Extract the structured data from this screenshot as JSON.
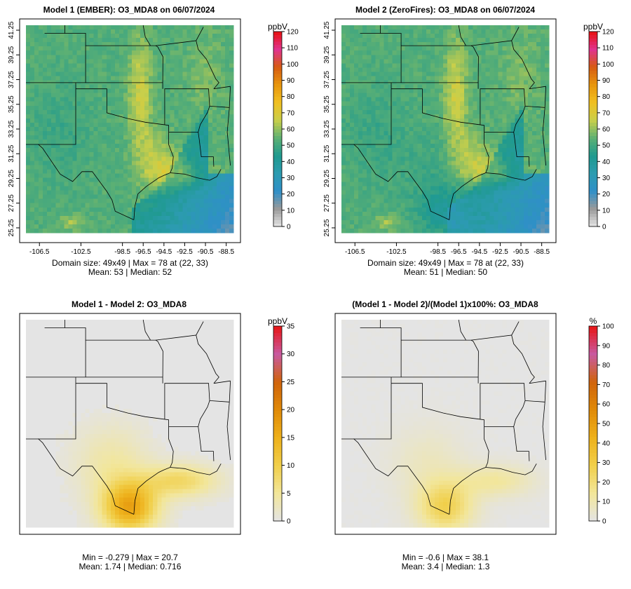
{
  "panels": [
    {
      "title": "Model 1 (EMBER): O3_MDA8 on 06/07/2024",
      "legend_unit": "ppbV",
      "legend_ticks": [
        0,
        10,
        20,
        30,
        40,
        50,
        60,
        70,
        80,
        90,
        100,
        110,
        120
      ],
      "legend_max": 120,
      "legend_type": "conc",
      "field": "model1",
      "show_axes": true,
      "x_ticks": [
        "-106.5",
        "-102.5",
        "-98.5",
        "-96.5",
        "-94.5",
        "-92.5",
        "-90.5",
        "-88.5"
      ],
      "y_ticks": [
        "25.25",
        "27.25",
        "29.25",
        "31.25",
        "33.25",
        "35.25",
        "37.25",
        "39.25",
        "41.25"
      ],
      "stats_line1": "Domain size: 49x49 | Max = 78 at (22, 33)",
      "stats_line2": "Mean: 53 |  Median: 52"
    },
    {
      "title": "Model 2 (ZeroFires): O3_MDA8 on 06/07/2024",
      "legend_unit": "ppbV",
      "legend_ticks": [
        0,
        10,
        20,
        30,
        40,
        50,
        60,
        70,
        80,
        90,
        100,
        110,
        120
      ],
      "legend_max": 120,
      "legend_type": "conc",
      "field": "model2",
      "show_axes": true,
      "x_ticks": [
        "-106.5",
        "-102.5",
        "-98.5",
        "-96.5",
        "-94.5",
        "-92.5",
        "-90.5",
        "-88.5"
      ],
      "y_ticks": [
        "25.25",
        "27.25",
        "29.25",
        "31.25",
        "33.25",
        "35.25",
        "37.25",
        "39.25",
        "41.25"
      ],
      "stats_line1": "Domain size: 49x49 | Max = 78 at (22, 33)",
      "stats_line2": "Mean: 51 |  Median: 50"
    },
    {
      "title": "Model 1 - Model 2: O3_MDA8",
      "legend_unit": "ppbV",
      "legend_ticks": [
        0,
        5,
        10,
        15,
        20,
        25,
        30,
        35
      ],
      "legend_max": 35,
      "legend_type": "diff",
      "field": "diff",
      "show_axes": false,
      "stats_line1": "Min = -0.279 | Max = 20.7",
      "stats_line2": "Mean: 1.74 |  Median: 0.716"
    },
    {
      "title": "(Model 1 - Model 2)/(Model 1)x100%: O3_MDA8",
      "legend_unit": "%",
      "legend_ticks": [
        0,
        10,
        20,
        30,
        40,
        50,
        60,
        70,
        80,
        90,
        100
      ],
      "legend_max": 100,
      "legend_type": "diff",
      "field": "pct",
      "show_axes": false,
      "stats_line1": "Min = -0.6 | Max = 38.1",
      "stats_line2": "Mean: 3.4 |  Median: 1.3"
    }
  ],
  "chart_data": [
    {
      "type": "heatmap",
      "title": "Model 1 (EMBER): O3_MDA8 on 06/07/2024",
      "colorbar_label": "ppbV",
      "colorbar_range": [
        0,
        120
      ],
      "x_ticks": [
        -106.5,
        -102.5,
        -98.5,
        -96.5,
        -94.5,
        -92.5,
        -90.5,
        -88.5
      ],
      "y_ticks": [
        25.25,
        27.25,
        29.25,
        31.25,
        33.25,
        35.25,
        37.25,
        39.25,
        41.25
      ],
      "grid": "49x49",
      "max": 78,
      "max_at": [
        22,
        33
      ],
      "mean": 53,
      "median": 52
    },
    {
      "type": "heatmap",
      "title": "Model 2 (ZeroFires): O3_MDA8 on 06/07/2024",
      "colorbar_label": "ppbV",
      "colorbar_range": [
        0,
        120
      ],
      "x_ticks": [
        -106.5,
        -102.5,
        -98.5,
        -96.5,
        -94.5,
        -92.5,
        -90.5,
        -88.5
      ],
      "y_ticks": [
        25.25,
        27.25,
        29.25,
        31.25,
        33.25,
        35.25,
        37.25,
        39.25,
        41.25
      ],
      "grid": "49x49",
      "max": 78,
      "max_at": [
        22,
        33
      ],
      "mean": 51,
      "median": 50
    },
    {
      "type": "heatmap",
      "title": "Model 1 - Model 2: O3_MDA8",
      "colorbar_label": "ppbV",
      "colorbar_range": [
        0,
        35
      ],
      "min": -0.279,
      "max": 20.7,
      "mean": 1.74,
      "median": 0.716
    },
    {
      "type": "heatmap",
      "title": "(Model 1 - Model 2)/(Model 1)x100%: O3_MDA8",
      "colorbar_label": "%",
      "colorbar_range": [
        0,
        100
      ],
      "min": -0.6,
      "max": 38.1,
      "mean": 3.4,
      "median": 1.3
    }
  ],
  "colors": {
    "conc": [
      "#e6e6e6",
      "#9a9a9a",
      "#2f8fc8",
      "#2c9bb0",
      "#1f9a8f",
      "#5cb074",
      "#c9cf4a",
      "#f1c021",
      "#e8960d",
      "#d65c12",
      "#e0348e",
      "#e81111"
    ],
    "diff": [
      "#e4e4e4",
      "#f2e69a",
      "#f1cf4a",
      "#eeb11b",
      "#e08a08",
      "#d0640c",
      "#c85aa0",
      "#e81515"
    ]
  }
}
